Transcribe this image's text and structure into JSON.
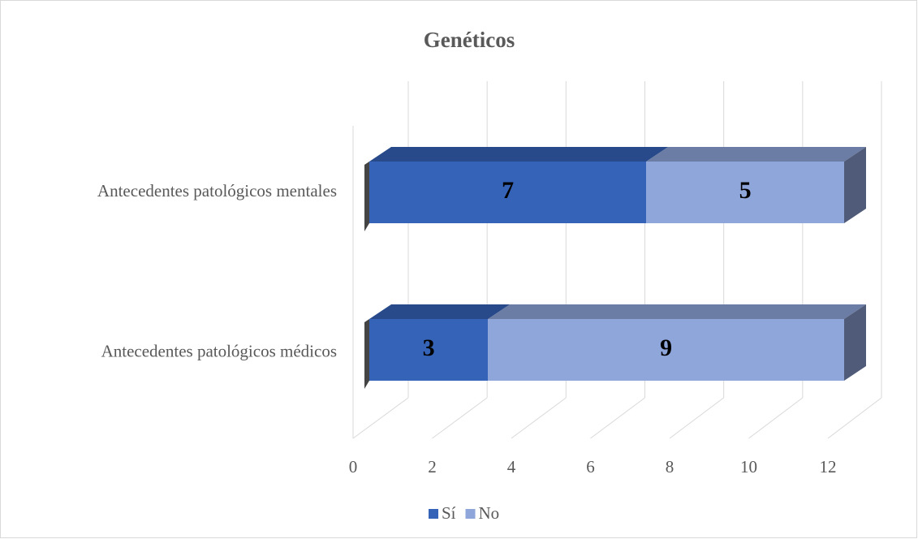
{
  "chart_data": {
    "type": "bar3d_stacked_horizontal",
    "title": "Genéticos",
    "categories": [
      "Antecedentes patológicos mentales",
      "Antecedentes patológicos médicos"
    ],
    "series": [
      {
        "name": "Sí",
        "color": "#3563b8",
        "values": [
          7,
          3
        ]
      },
      {
        "name": "No",
        "color": "#8fa6db",
        "values": [
          5,
          9
        ]
      }
    ],
    "xlim": [
      0,
      12
    ],
    "xticks": [
      0,
      2,
      4,
      6,
      8,
      10,
      12
    ],
    "grid": true,
    "legend": "bottom"
  }
}
